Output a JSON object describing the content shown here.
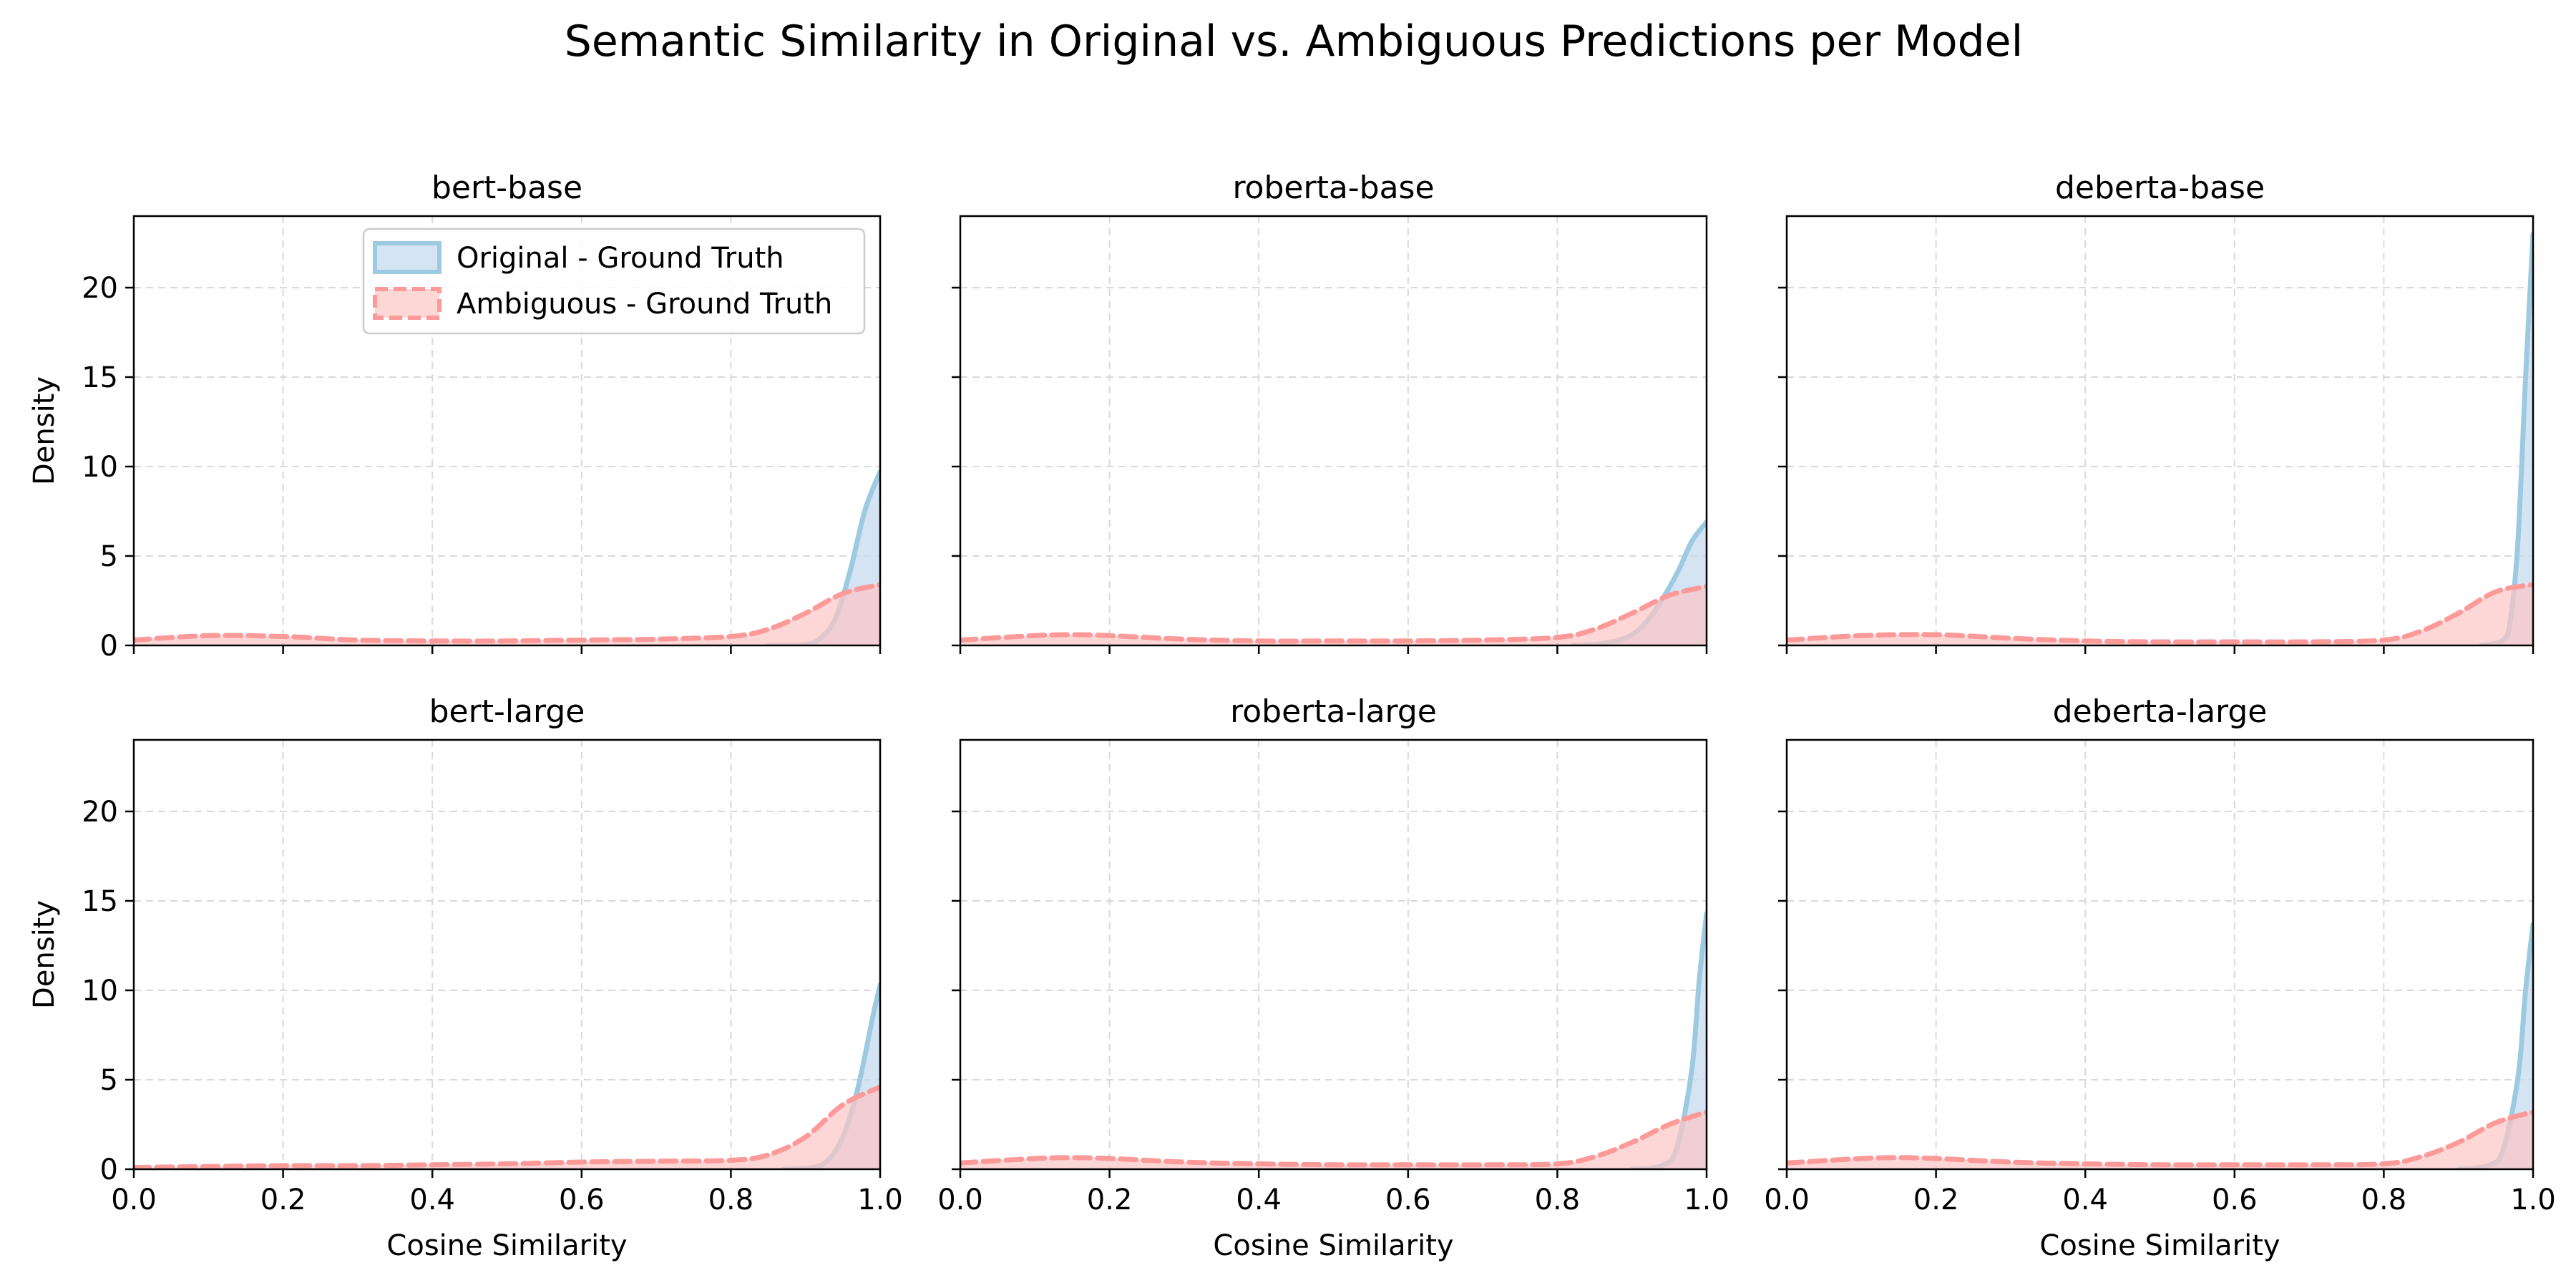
{
  "figure": {
    "title": "Semantic Similarity in Original vs. Ambiguous Predictions per Model"
  },
  "colors": {
    "original_line": "#9ecae1",
    "original_fill": "#c6dbef",
    "ambiguous_line": "#fb9a99",
    "ambiguous_fill": "#fcc5c5",
    "grid": "#d9d9d9"
  },
  "chart_data": [
    {
      "type": "area",
      "title": "bert-base",
      "xlabel": "",
      "ylabel": "Density",
      "xlim": [
        0,
        1
      ],
      "ylim": [
        0,
        24
      ],
      "xticks": [
        "0.0",
        "0.2",
        "0.4",
        "0.6",
        "0.8",
        "1.0"
      ],
      "yticks": [
        "0",
        "5",
        "10",
        "15",
        "20"
      ],
      "grid": true,
      "legend": "upper right",
      "series": [
        {
          "name": "Original - Ground Truth",
          "x": [
            0.85,
            0.9,
            0.92,
            0.94,
            0.96,
            0.98,
            1.0
          ],
          "y": [
            0,
            0.05,
            0.4,
            1.5,
            4.2,
            7.6,
            9.7
          ]
        },
        {
          "name": "Ambiguous - Ground Truth",
          "x": [
            0.0,
            0.1,
            0.2,
            0.3,
            0.4,
            0.5,
            0.6,
            0.7,
            0.8,
            0.85,
            0.9,
            0.95,
            1.0
          ],
          "y": [
            0.3,
            0.55,
            0.5,
            0.3,
            0.25,
            0.25,
            0.3,
            0.35,
            0.5,
            0.9,
            1.8,
            2.9,
            3.4
          ]
        }
      ]
    },
    {
      "type": "area",
      "title": "roberta-base",
      "xlabel": "",
      "ylabel": "",
      "xlim": [
        0,
        1
      ],
      "ylim": [
        0,
        24
      ],
      "xticks": [
        "0.0",
        "0.2",
        "0.4",
        "0.6",
        "0.8",
        "1.0"
      ],
      "yticks": [
        "0",
        "5",
        "10",
        "15",
        "20"
      ],
      "grid": true,
      "series": [
        {
          "name": "Original - Ground Truth",
          "x": [
            0.82,
            0.86,
            0.9,
            0.93,
            0.96,
            0.98,
            1.0
          ],
          "y": [
            0,
            0.1,
            0.6,
            1.9,
            4.0,
            5.8,
            6.9
          ]
        },
        {
          "name": "Ambiguous - Ground Truth",
          "x": [
            0.0,
            0.1,
            0.15,
            0.2,
            0.3,
            0.4,
            0.5,
            0.6,
            0.7,
            0.8,
            0.85,
            0.9,
            0.95,
            1.0
          ],
          "y": [
            0.3,
            0.55,
            0.6,
            0.55,
            0.35,
            0.25,
            0.25,
            0.25,
            0.3,
            0.45,
            0.9,
            1.8,
            2.8,
            3.3
          ]
        }
      ]
    },
    {
      "type": "area",
      "title": "deberta-base",
      "xlabel": "",
      "ylabel": "",
      "xlim": [
        0,
        1
      ],
      "ylim": [
        0,
        24
      ],
      "xticks": [
        "0.0",
        "0.2",
        "0.4",
        "0.6",
        "0.8",
        "1.0"
      ],
      "yticks": [
        "0",
        "5",
        "10",
        "15",
        "20"
      ],
      "grid": true,
      "series": [
        {
          "name": "Original - Ground Truth",
          "x": [
            0.93,
            0.96,
            0.97,
            0.98,
            0.99,
            1.0
          ],
          "y": [
            0,
            0.3,
            1.5,
            6.0,
            15.0,
            23.0
          ]
        },
        {
          "name": "Ambiguous - Ground Truth",
          "x": [
            0.0,
            0.1,
            0.2,
            0.3,
            0.4,
            0.5,
            0.6,
            0.7,
            0.8,
            0.85,
            0.9,
            0.95,
            1.0
          ],
          "y": [
            0.3,
            0.55,
            0.6,
            0.4,
            0.25,
            0.2,
            0.2,
            0.2,
            0.3,
            0.8,
            1.8,
            3.0,
            3.4
          ]
        }
      ]
    },
    {
      "type": "area",
      "title": "bert-large",
      "xlabel": "Cosine Similarity",
      "ylabel": "Density",
      "xlim": [
        0,
        1
      ],
      "ylim": [
        0,
        24
      ],
      "xticks": [
        "0.0",
        "0.2",
        "0.4",
        "0.6",
        "0.8",
        "1.0"
      ],
      "yticks": [
        "0",
        "5",
        "10",
        "15",
        "20"
      ],
      "grid": true,
      "series": [
        {
          "name": "Original - Ground Truth",
          "x": [
            0.87,
            0.91,
            0.93,
            0.95,
            0.97,
            0.99,
            1.0
          ],
          "y": [
            0,
            0.1,
            0.5,
            1.8,
            4.5,
            8.5,
            10.3
          ]
        },
        {
          "name": "Ambiguous - Ground Truth",
          "x": [
            0.0,
            0.1,
            0.2,
            0.3,
            0.4,
            0.5,
            0.6,
            0.7,
            0.8,
            0.85,
            0.9,
            0.95,
            1.0
          ],
          "y": [
            0.1,
            0.15,
            0.2,
            0.2,
            0.25,
            0.3,
            0.4,
            0.45,
            0.5,
            0.8,
            1.8,
            3.6,
            4.6
          ]
        }
      ]
    },
    {
      "type": "area",
      "title": "roberta-large",
      "xlabel": "Cosine Similarity",
      "ylabel": "",
      "xlim": [
        0,
        1
      ],
      "ylim": [
        0,
        24
      ],
      "xticks": [
        "0.0",
        "0.2",
        "0.4",
        "0.6",
        "0.8",
        "1.0"
      ],
      "yticks": [
        "0",
        "5",
        "10",
        "15",
        "20"
      ],
      "grid": true,
      "series": [
        {
          "name": "Original - Ground Truth",
          "x": [
            0.9,
            0.94,
            0.96,
            0.98,
            0.99,
            1.0
          ],
          "y": [
            0,
            0.2,
            1.2,
            5.5,
            10.5,
            14.3
          ]
        },
        {
          "name": "Ambiguous - Ground Truth",
          "x": [
            0.0,
            0.1,
            0.15,
            0.2,
            0.3,
            0.4,
            0.5,
            0.6,
            0.7,
            0.8,
            0.85,
            0.9,
            0.95,
            1.0
          ],
          "y": [
            0.35,
            0.6,
            0.65,
            0.6,
            0.4,
            0.3,
            0.25,
            0.25,
            0.25,
            0.3,
            0.7,
            1.5,
            2.5,
            3.2
          ]
        }
      ]
    },
    {
      "type": "area",
      "title": "deberta-large",
      "xlabel": "Cosine Similarity",
      "ylabel": "",
      "xlim": [
        0,
        1
      ],
      "ylim": [
        0,
        24
      ],
      "xticks": [
        "0.0",
        "0.2",
        "0.4",
        "0.6",
        "0.8",
        "1.0"
      ],
      "yticks": [
        "0",
        "5",
        "10",
        "15",
        "20"
      ],
      "grid": true,
      "series": [
        {
          "name": "Original - Ground Truth",
          "x": [
            0.9,
            0.94,
            0.96,
            0.98,
            0.99,
            1.0
          ],
          "y": [
            0,
            0.2,
            1.1,
            5.2,
            10.0,
            13.7
          ]
        },
        {
          "name": "Ambiguous - Ground Truth",
          "x": [
            0.0,
            0.1,
            0.15,
            0.2,
            0.3,
            0.4,
            0.5,
            0.6,
            0.7,
            0.8,
            0.85,
            0.9,
            0.95,
            1.0
          ],
          "y": [
            0.35,
            0.6,
            0.65,
            0.6,
            0.4,
            0.3,
            0.25,
            0.25,
            0.25,
            0.3,
            0.7,
            1.5,
            2.6,
            3.2
          ]
        }
      ]
    }
  ]
}
